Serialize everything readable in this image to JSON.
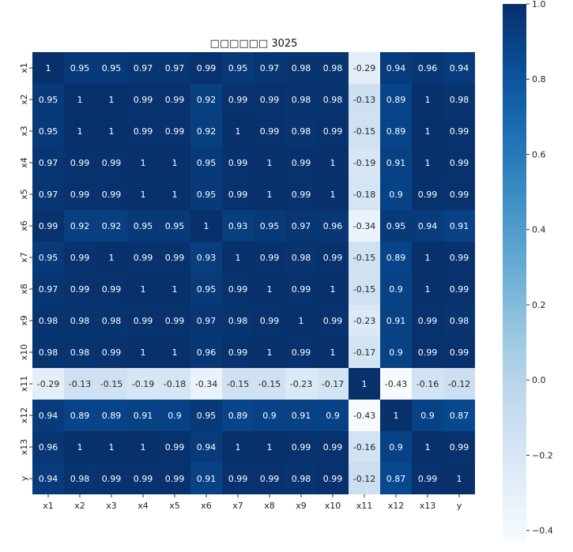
{
  "chart_data": {
    "type": "heatmap",
    "title": "□□□□□□ 3025",
    "x_labels": [
      "x1",
      "x2",
      "x3",
      "x4",
      "x5",
      "x6",
      "x7",
      "x8",
      "x9",
      "x10",
      "x11",
      "x12",
      "x13",
      "y"
    ],
    "y_labels": [
      "x1",
      "x2",
      "x3",
      "x4",
      "x5",
      "x6",
      "x7",
      "x8",
      "x9",
      "x10",
      "x11",
      "x12",
      "x13",
      "y"
    ],
    "values": [
      [
        1,
        0.95,
        0.95,
        0.97,
        0.97,
        0.99,
        0.95,
        0.97,
        0.98,
        0.98,
        -0.29,
        0.94,
        0.96,
        0.94
      ],
      [
        0.95,
        1,
        1,
        0.99,
        0.99,
        0.92,
        0.99,
        0.99,
        0.98,
        0.98,
        -0.13,
        0.89,
        1,
        0.98
      ],
      [
        0.95,
        1,
        1,
        0.99,
        0.99,
        0.92,
        1,
        0.99,
        0.98,
        0.99,
        -0.15,
        0.89,
        1,
        0.99
      ],
      [
        0.97,
        0.99,
        0.99,
        1,
        1,
        0.95,
        0.99,
        1,
        0.99,
        1,
        -0.19,
        0.91,
        1,
        0.99
      ],
      [
        0.97,
        0.99,
        0.99,
        1,
        1,
        0.95,
        0.99,
        1,
        0.99,
        1,
        -0.18,
        0.9,
        0.99,
        0.99
      ],
      [
        0.99,
        0.92,
        0.92,
        0.95,
        0.95,
        1,
        0.93,
        0.95,
        0.97,
        0.96,
        -0.34,
        0.95,
        0.94,
        0.91
      ],
      [
        0.95,
        0.99,
        1,
        0.99,
        0.99,
        0.93,
        1,
        0.99,
        0.98,
        0.99,
        -0.15,
        0.89,
        1,
        0.99
      ],
      [
        0.97,
        0.99,
        0.99,
        1,
        1,
        0.95,
        0.99,
        1,
        0.99,
        1,
        -0.15,
        0.9,
        1,
        0.99
      ],
      [
        0.98,
        0.98,
        0.98,
        0.99,
        0.99,
        0.97,
        0.98,
        0.99,
        1,
        0.99,
        -0.23,
        0.91,
        0.99,
        0.98
      ],
      [
        0.98,
        0.98,
        0.99,
        1,
        1,
        0.96,
        0.99,
        1,
        0.99,
        1,
        -0.17,
        0.9,
        0.99,
        0.99
      ],
      [
        -0.29,
        -0.13,
        -0.15,
        -0.19,
        -0.18,
        -0.34,
        -0.15,
        -0.15,
        -0.23,
        -0.17,
        1,
        -0.43,
        -0.16,
        -0.12
      ],
      [
        0.94,
        0.89,
        0.89,
        0.91,
        0.9,
        0.95,
        0.89,
        0.9,
        0.91,
        0.9,
        -0.43,
        1,
        0.9,
        0.87
      ],
      [
        0.96,
        1,
        1,
        1,
        0.99,
        0.94,
        1,
        1,
        0.99,
        0.99,
        -0.16,
        0.9,
        1,
        0.99
      ],
      [
        0.94,
        0.98,
        0.99,
        0.99,
        0.99,
        0.91,
        0.99,
        0.99,
        0.98,
        0.99,
        -0.12,
        0.87,
        0.99,
        1
      ]
    ],
    "colormap": "Blues",
    "color_low": "#f7fbff",
    "color_high": "#08306b",
    "vmin": -0.43,
    "vmax": 1.0,
    "colorbar_ticks": [
      1.0,
      0.8,
      0.6,
      0.4,
      0.2,
      0.0,
      -0.2,
      -0.4
    ],
    "colorbar_tick_labels": [
      "1.0",
      "0.8",
      "0.6",
      "0.4",
      "0.2",
      "0.0",
      "−0.2",
      "−0.4"
    ],
    "grid": false,
    "annotations": true
  }
}
